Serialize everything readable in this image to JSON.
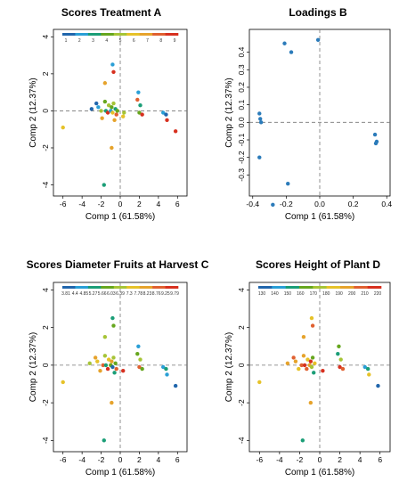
{
  "chart_data": [
    {
      "type": "scatter",
      "title": "Scores Treatment A",
      "xlabel": "Comp 1 (61.58%)",
      "ylabel": "Comp 2 (12.37%)",
      "xlim": [
        -7,
        7
      ],
      "ylim": [
        -4.6,
        4.4
      ],
      "xticks": [
        -6,
        -4,
        -2,
        0,
        2,
        4,
        6
      ],
      "yticks": [
        -4,
        -2,
        0,
        2,
        4
      ],
      "colorbar": {
        "labels": [
          "1",
          "2",
          "3",
          "4",
          "5",
          "6",
          "7",
          "8",
          "9"
        ],
        "colors": [
          "#2166ac",
          "#2a9fd6",
          "#1b9e77",
          "#66a61e",
          "#a6c436",
          "#e6c229",
          "#e6a32c",
          "#e06030",
          "#d7301f"
        ]
      },
      "points": [
        {
          "x": -6.0,
          "y": -0.9,
          "c": 6
        },
        {
          "x": -3.0,
          "y": 0.1,
          "c": 1
        },
        {
          "x": -2.5,
          "y": 0.4,
          "c": 1
        },
        {
          "x": -2.3,
          "y": 0.2,
          "c": 2
        },
        {
          "x": -2.0,
          "y": 0.0,
          "c": 5
        },
        {
          "x": -1.9,
          "y": -0.4,
          "c": 7
        },
        {
          "x": -1.6,
          "y": 0.5,
          "c": 4
        },
        {
          "x": -1.5,
          "y": 0.0,
          "c": 3
        },
        {
          "x": -1.3,
          "y": -0.1,
          "c": 9
        },
        {
          "x": -1.2,
          "y": 0.3,
          "c": 5
        },
        {
          "x": -1.0,
          "y": 0.0,
          "c": 2
        },
        {
          "x": -0.9,
          "y": 0.2,
          "c": 4
        },
        {
          "x": -0.8,
          "y": -0.1,
          "c": 6
        },
        {
          "x": -0.7,
          "y": 0.4,
          "c": 5
        },
        {
          "x": -0.6,
          "y": -0.5,
          "c": 7
        },
        {
          "x": -0.5,
          "y": 0.1,
          "c": 3
        },
        {
          "x": -0.4,
          "y": -0.2,
          "c": 8
        },
        {
          "x": -0.3,
          "y": 0.0,
          "c": 4
        },
        {
          "x": -1.6,
          "y": 1.5,
          "c": 7
        },
        {
          "x": -0.8,
          "y": 2.5,
          "c": 2
        },
        {
          "x": -0.7,
          "y": 2.1,
          "c": 9
        },
        {
          "x": -0.9,
          "y": -2.0,
          "c": 7
        },
        {
          "x": -1.7,
          "y": -4.0,
          "c": 3
        },
        {
          "x": 0.3,
          "y": -0.3,
          "c": 6
        },
        {
          "x": 0.4,
          "y": -0.1,
          "c": 5
        },
        {
          "x": 1.8,
          "y": 0.6,
          "c": 8
        },
        {
          "x": 1.9,
          "y": 1.0,
          "c": 2
        },
        {
          "x": 2.0,
          "y": -0.1,
          "c": 4
        },
        {
          "x": 2.1,
          "y": 0.3,
          "c": 3
        },
        {
          "x": 2.3,
          "y": -0.2,
          "c": 9
        },
        {
          "x": 4.5,
          "y": -0.1,
          "c": 2
        },
        {
          "x": 4.8,
          "y": -0.2,
          "c": 1
        },
        {
          "x": 4.9,
          "y": -0.5,
          "c": 9
        },
        {
          "x": 5.8,
          "y": -1.1,
          "c": 9
        }
      ]
    },
    {
      "type": "scatter",
      "title": "Loadings B",
      "xlabel": "Comp 1 (61.58%)",
      "ylabel": "Comp 2 (12.37%)",
      "xlim": [
        -0.42,
        0.42
      ],
      "ylim": [
        -0.42,
        0.53
      ],
      "xticks": [
        -0.4,
        -0.2,
        0.0,
        0.2,
        0.4
      ],
      "xtick_labels": [
        "-0.4",
        "-0.2",
        "0.0",
        "0.2",
        "0.4"
      ],
      "yticks": [
        -0.3,
        -0.2,
        -0.1,
        0.0,
        0.1,
        0.2,
        0.3,
        0.4
      ],
      "ytick_labels": [
        "-0.3",
        "-0.2",
        "-0.1",
        "0.0",
        "0.1",
        "0.2",
        "0.3",
        "0.4"
      ],
      "points": [
        {
          "x": -0.01,
          "y": 0.47
        },
        {
          "x": -0.21,
          "y": 0.45
        },
        {
          "x": -0.17,
          "y": 0.4
        },
        {
          "x": -0.36,
          "y": 0.05
        },
        {
          "x": -0.355,
          "y": 0.02
        },
        {
          "x": -0.35,
          "y": 0.0
        },
        {
          "x": -0.36,
          "y": -0.2
        },
        {
          "x": -0.19,
          "y": -0.35
        },
        {
          "x": -0.28,
          "y": -0.47
        },
        {
          "x": 0.33,
          "y": -0.07
        },
        {
          "x": 0.34,
          "y": -0.11
        },
        {
          "x": 0.335,
          "y": -0.12
        }
      ]
    },
    {
      "type": "scatter",
      "title": "Scores Diameter Fruits at Harvest C",
      "xlabel": "Comp 1 (61.58%)",
      "ylabel": "Comp 2 (12.37%)",
      "xlim": [
        -7,
        7
      ],
      "ylim": [
        -4.6,
        4.4
      ],
      "xticks": [
        -6,
        -4,
        -2,
        0,
        2,
        4,
        6
      ],
      "yticks": [
        -4,
        -2,
        0,
        2,
        4
      ],
      "colorbar": {
        "labels": [
          "3.81",
          "4.4",
          "4.85",
          "5.27",
          "5.66",
          "6.03",
          "6.39",
          "7.3",
          "7.78",
          "8.23",
          "8.76",
          "9.25",
          "9.79"
        ],
        "colors": [
          "#2166ac",
          "#2a9fd6",
          "#1b9e77",
          "#66a61e",
          "#a6c436",
          "#e6c229",
          "#e6a32c",
          "#e06030",
          "#d7301f"
        ]
      },
      "points": [
        {
          "x": -6.0,
          "y": -0.9,
          "c": 6
        },
        {
          "x": -3.2,
          "y": 0.1,
          "c": 5
        },
        {
          "x": -2.6,
          "y": 0.4,
          "c": 7
        },
        {
          "x": -2.4,
          "y": 0.2,
          "c": 6
        },
        {
          "x": -2.1,
          "y": -0.3,
          "c": 7
        },
        {
          "x": -1.8,
          "y": 0.0,
          "c": 8
        },
        {
          "x": -1.6,
          "y": 0.5,
          "c": 5
        },
        {
          "x": -1.5,
          "y": 0.0,
          "c": 3
        },
        {
          "x": -1.3,
          "y": -0.2,
          "c": 9
        },
        {
          "x": -1.2,
          "y": 0.3,
          "c": 6
        },
        {
          "x": -1.0,
          "y": 0.0,
          "c": 4
        },
        {
          "x": -0.9,
          "y": 0.2,
          "c": 7
        },
        {
          "x": -0.8,
          "y": -0.1,
          "c": 1
        },
        {
          "x": -0.7,
          "y": 0.4,
          "c": 5
        },
        {
          "x": -0.6,
          "y": -0.4,
          "c": 3
        },
        {
          "x": -0.5,
          "y": 0.1,
          "c": 4
        },
        {
          "x": -0.4,
          "y": -0.2,
          "c": 8
        },
        {
          "x": -1.6,
          "y": 1.5,
          "c": 5
        },
        {
          "x": -0.8,
          "y": 2.5,
          "c": 3
        },
        {
          "x": -0.7,
          "y": 2.1,
          "c": 4
        },
        {
          "x": -0.9,
          "y": -2.0,
          "c": 7
        },
        {
          "x": -1.7,
          "y": -4.0,
          "c": 3
        },
        {
          "x": 0.3,
          "y": -0.3,
          "c": 9
        },
        {
          "x": 1.8,
          "y": 0.6,
          "c": 4
        },
        {
          "x": 1.9,
          "y": 1.0,
          "c": 2
        },
        {
          "x": 2.0,
          "y": -0.1,
          "c": 8
        },
        {
          "x": 2.1,
          "y": 0.3,
          "c": 5
        },
        {
          "x": 2.3,
          "y": -0.2,
          "c": 4
        },
        {
          "x": 4.5,
          "y": -0.1,
          "c": 2
        },
        {
          "x": 4.8,
          "y": -0.2,
          "c": 3
        },
        {
          "x": 4.9,
          "y": -0.5,
          "c": 2
        },
        {
          "x": 5.8,
          "y": -1.1,
          "c": 1
        }
      ]
    },
    {
      "type": "scatter",
      "title": "Scores Height of Plant D",
      "xlabel": "Comp 1 (61.58%)",
      "ylabel": "Comp 2 (12.37%)",
      "xlim": [
        -7,
        7
      ],
      "ylim": [
        -4.6,
        4.4
      ],
      "xticks": [
        -6,
        -4,
        -2,
        0,
        2,
        4,
        6
      ],
      "yticks": [
        -4,
        -2,
        0,
        2,
        4
      ],
      "colorbar": {
        "labels": [
          "130",
          "140",
          "150",
          "160",
          "170",
          "180",
          "190",
          "200",
          "210",
          "220"
        ],
        "colors": [
          "#2166ac",
          "#2a9fd6",
          "#1b9e77",
          "#66a61e",
          "#a6c436",
          "#e6c229",
          "#e6a32c",
          "#e06030",
          "#d7301f"
        ]
      },
      "points": [
        {
          "x": -6.0,
          "y": -0.9,
          "c": 6
        },
        {
          "x": -3.2,
          "y": 0.1,
          "c": 7
        },
        {
          "x": -2.6,
          "y": 0.4,
          "c": 8
        },
        {
          "x": -2.4,
          "y": 0.2,
          "c": 7
        },
        {
          "x": -2.1,
          "y": -0.2,
          "c": 6
        },
        {
          "x": -1.8,
          "y": 0.0,
          "c": 8
        },
        {
          "x": -1.6,
          "y": 0.5,
          "c": 7
        },
        {
          "x": -1.5,
          "y": 0.0,
          "c": 9
        },
        {
          "x": -1.3,
          "y": -0.2,
          "c": 8
        },
        {
          "x": -1.2,
          "y": 0.3,
          "c": 6
        },
        {
          "x": -1.0,
          "y": 0.0,
          "c": 7
        },
        {
          "x": -0.9,
          "y": 0.2,
          "c": 9
        },
        {
          "x": -0.8,
          "y": -0.1,
          "c": 5
        },
        {
          "x": -0.7,
          "y": 0.4,
          "c": 4
        },
        {
          "x": -0.6,
          "y": -0.4,
          "c": 3
        },
        {
          "x": -0.5,
          "y": 0.1,
          "c": 6
        },
        {
          "x": -1.6,
          "y": 1.5,
          "c": 7
        },
        {
          "x": -0.8,
          "y": 2.5,
          "c": 6
        },
        {
          "x": -0.7,
          "y": 2.1,
          "c": 8
        },
        {
          "x": -0.9,
          "y": -2.0,
          "c": 7
        },
        {
          "x": -1.7,
          "y": -4.0,
          "c": 3
        },
        {
          "x": 0.3,
          "y": -0.3,
          "c": 9
        },
        {
          "x": 1.8,
          "y": 0.6,
          "c": 3
        },
        {
          "x": 1.9,
          "y": 1.0,
          "c": 4
        },
        {
          "x": 2.0,
          "y": -0.1,
          "c": 9
        },
        {
          "x": 2.1,
          "y": 0.3,
          "c": 5
        },
        {
          "x": 2.3,
          "y": -0.2,
          "c": 8
        },
        {
          "x": 4.5,
          "y": -0.1,
          "c": 2
        },
        {
          "x": 4.8,
          "y": -0.2,
          "c": 3
        },
        {
          "x": 4.9,
          "y": -0.5,
          "c": 6
        },
        {
          "x": 5.8,
          "y": -1.1,
          "c": 1
        }
      ]
    }
  ]
}
